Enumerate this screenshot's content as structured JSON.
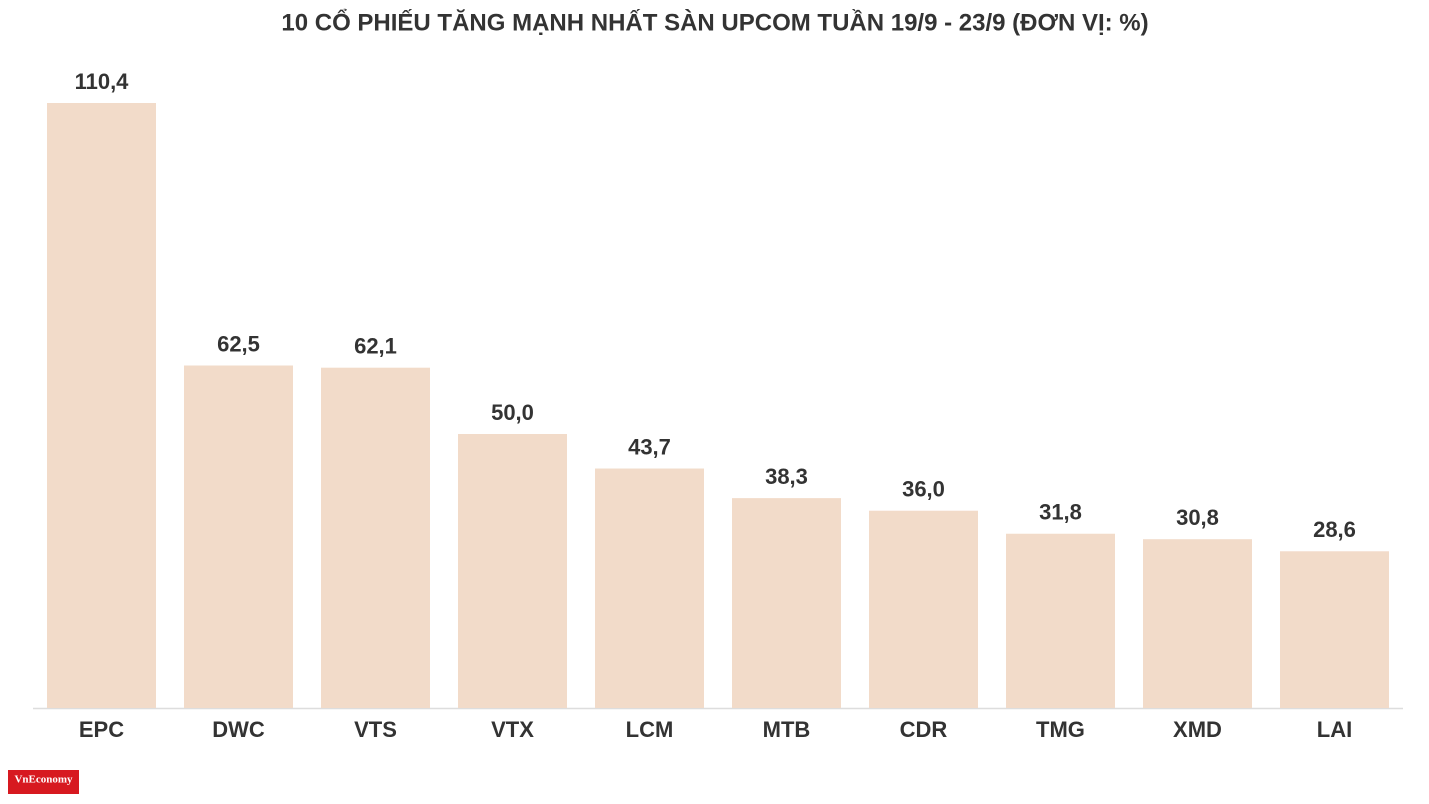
{
  "chart_data": {
    "type": "bar",
    "title": "10 CỔ PHIẾU TĂNG MẠNH NHẤT SÀN UPCOM TUẦN 19/9 - 23/9 (ĐƠN VỊ: %)",
    "categories": [
      "EPC",
      "DWC",
      "VTS",
      "VTX",
      "LCM",
      "MTB",
      "CDR",
      "TMG",
      "XMD",
      "LAI"
    ],
    "values": [
      110.4,
      62.5,
      62.1,
      50.0,
      43.7,
      38.3,
      36.0,
      31.8,
      30.8,
      28.6
    ],
    "value_labels": [
      "110,4",
      "62,5",
      "62,1",
      "50,0",
      "43,7",
      "38,3",
      "36,0",
      "31,8",
      "30,8",
      "28,6"
    ],
    "color": "#f2dbc9",
    "grid": false
  },
  "logo": "VnEconomy"
}
